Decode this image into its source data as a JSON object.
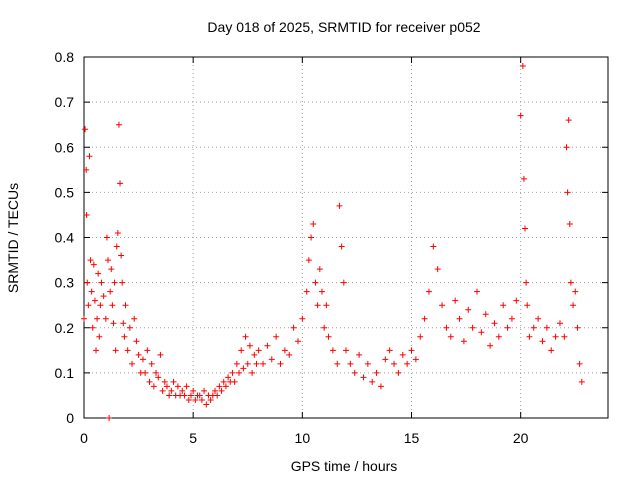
{
  "chart_data": {
    "type": "scatter",
    "title": "Day 018 of 2025, SRMTID for receiver p052",
    "xlabel": "GPS time / hours",
    "ylabel": "SRMTID / TECUs",
    "xlim": [
      0,
      24
    ],
    "ylim": [
      0,
      0.8
    ],
    "xticks": [
      0,
      5,
      10,
      15,
      20
    ],
    "xtick_labels": [
      "0",
      "5",
      "10",
      "15",
      "20"
    ],
    "yticks": [
      0,
      0.1,
      0.2,
      0.3,
      0.4,
      0.5,
      0.6,
      0.7,
      0.8
    ],
    "ytick_labels": [
      "0",
      "0.1",
      "0.2",
      "0.3",
      "0.4",
      "0.5",
      "0.6",
      "0.7",
      "0.8"
    ],
    "grid": true,
    "marker": "plus",
    "series": [
      {
        "name": "SRMTID",
        "color": "#ff0000",
        "x": [
          0.0,
          0.05,
          0.1,
          0.12,
          0.15,
          0.2,
          0.25,
          0.3,
          0.35,
          0.4,
          0.45,
          0.5,
          0.55,
          0.6,
          0.65,
          0.7,
          0.75,
          0.8,
          0.9,
          1.0,
          1.05,
          1.1,
          1.15,
          1.2,
          1.25,
          1.3,
          1.35,
          1.4,
          1.45,
          1.5,
          1.55,
          1.6,
          1.65,
          1.7,
          1.75,
          1.8,
          1.85,
          1.9,
          2.0,
          2.1,
          2.2,
          2.3,
          2.4,
          2.5,
          2.6,
          2.7,
          2.8,
          2.9,
          3.0,
          3.1,
          3.2,
          3.3,
          3.4,
          3.5,
          3.6,
          3.7,
          3.8,
          3.9,
          4.0,
          4.1,
          4.2,
          4.3,
          4.4,
          4.5,
          4.6,
          4.7,
          4.8,
          4.9,
          5.0,
          5.1,
          5.2,
          5.3,
          5.4,
          5.5,
          5.6,
          5.7,
          5.8,
          5.9,
          6.0,
          6.1,
          6.2,
          6.3,
          6.4,
          6.5,
          6.6,
          6.7,
          6.8,
          6.9,
          7.0,
          7.1,
          7.2,
          7.3,
          7.4,
          7.5,
          7.6,
          7.7,
          7.8,
          7.9,
          8.0,
          8.2,
          8.4,
          8.6,
          8.8,
          9.0,
          9.2,
          9.4,
          9.6,
          9.8,
          10.0,
          10.2,
          10.3,
          10.4,
          10.5,
          10.6,
          10.7,
          10.8,
          10.9,
          11.0,
          11.1,
          11.2,
          11.4,
          11.6,
          11.7,
          11.8,
          11.9,
          12.0,
          12.2,
          12.4,
          12.6,
          12.8,
          13.0,
          13.2,
          13.4,
          13.6,
          13.8,
          14.0,
          14.2,
          14.4,
          14.6,
          14.8,
          15.0,
          15.2,
          15.4,
          15.6,
          15.8,
          16.0,
          16.2,
          16.4,
          16.6,
          16.8,
          17.0,
          17.2,
          17.4,
          17.6,
          17.8,
          18.0,
          18.2,
          18.4,
          18.6,
          18.8,
          19.0,
          19.2,
          19.4,
          19.6,
          19.8,
          20.0,
          20.1,
          20.15,
          20.2,
          20.25,
          20.3,
          20.4,
          20.6,
          20.8,
          21.0,
          21.2,
          21.4,
          21.6,
          21.8,
          22.0,
          22.1,
          22.15,
          22.2,
          22.25,
          22.3,
          22.4,
          22.5,
          22.6,
          22.7,
          22.8
        ],
        "y": [
          0.22,
          0.64,
          0.55,
          0.45,
          0.3,
          0.25,
          0.58,
          0.35,
          0.28,
          0.2,
          0.34,
          0.26,
          0.15,
          0.22,
          0.32,
          0.18,
          0.25,
          0.3,
          0.27,
          0.22,
          0.4,
          0.35,
          0.0,
          0.28,
          0.33,
          0.25,
          0.21,
          0.3,
          0.15,
          0.38,
          0.41,
          0.65,
          0.52,
          0.36,
          0.3,
          0.21,
          0.18,
          0.25,
          0.15,
          0.2,
          0.12,
          0.22,
          0.17,
          0.14,
          0.1,
          0.13,
          0.1,
          0.15,
          0.08,
          0.12,
          0.07,
          0.1,
          0.09,
          0.14,
          0.06,
          0.08,
          0.07,
          0.05,
          0.06,
          0.08,
          0.05,
          0.07,
          0.05,
          0.06,
          0.05,
          0.07,
          0.04,
          0.05,
          0.06,
          0.04,
          0.05,
          0.05,
          0.04,
          0.06,
          0.03,
          0.05,
          0.04,
          0.05,
          0.06,
          0.05,
          0.07,
          0.06,
          0.08,
          0.07,
          0.09,
          0.08,
          0.1,
          0.08,
          0.12,
          0.1,
          0.15,
          0.11,
          0.18,
          0.12,
          0.16,
          0.1,
          0.14,
          0.12,
          0.15,
          0.12,
          0.16,
          0.13,
          0.18,
          0.12,
          0.15,
          0.14,
          0.2,
          0.17,
          0.22,
          0.28,
          0.35,
          0.4,
          0.43,
          0.3,
          0.25,
          0.33,
          0.28,
          0.2,
          0.25,
          0.18,
          0.15,
          0.12,
          0.47,
          0.38,
          0.3,
          0.15,
          0.12,
          0.1,
          0.14,
          0.09,
          0.12,
          0.08,
          0.1,
          0.07,
          0.13,
          0.15,
          0.12,
          0.1,
          0.14,
          0.12,
          0.15,
          0.13,
          0.18,
          0.22,
          0.28,
          0.38,
          0.33,
          0.25,
          0.2,
          0.18,
          0.26,
          0.22,
          0.17,
          0.24,
          0.2,
          0.28,
          0.19,
          0.23,
          0.16,
          0.21,
          0.18,
          0.25,
          0.2,
          0.22,
          0.26,
          0.67,
          0.78,
          0.53,
          0.42,
          0.3,
          0.25,
          0.18,
          0.2,
          0.22,
          0.17,
          0.2,
          0.15,
          0.18,
          0.21,
          0.18,
          0.6,
          0.5,
          0.66,
          0.43,
          0.3,
          0.25,
          0.28,
          0.2,
          0.12,
          0.08
        ]
      }
    ]
  }
}
